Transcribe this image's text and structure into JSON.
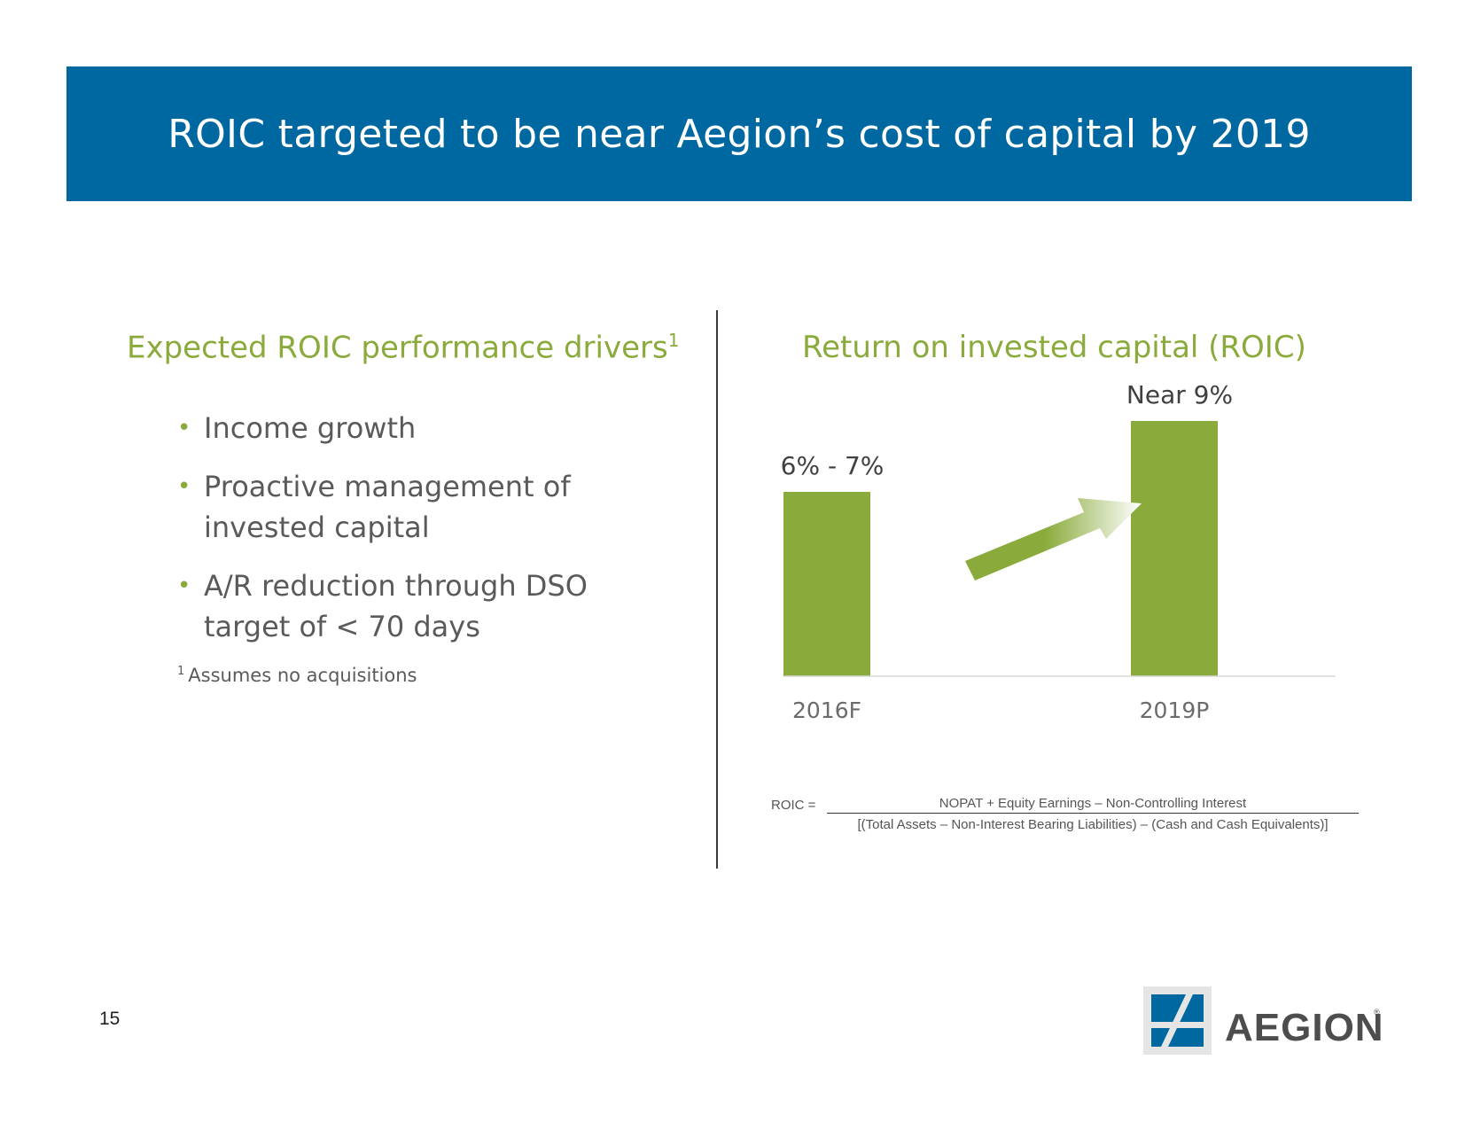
{
  "header": {
    "title": "ROIC targeted to be near Aegion’s cost of capital by 2019"
  },
  "left": {
    "title": "Expected ROIC performance drivers",
    "title_sup": "1",
    "bullets": [
      {
        "line1": "Income growth",
        "line2": ""
      },
      {
        "line1": "Proactive management of",
        "line2": "invested capital"
      },
      {
        "line1": "A/R reduction through DSO",
        "line2": "target of < 70 days"
      }
    ],
    "bullet_symbol": "•",
    "footnote_sup": "1",
    "footnote": "Assumes no acquisitions"
  },
  "right": {
    "title": "Return on invested capital (ROIC)"
  },
  "chart_data": {
    "type": "bar",
    "title": "Return on invested capital (ROIC)",
    "categories": [
      "2016F",
      "2019P"
    ],
    "values": [
      6.5,
      9
    ],
    "data_labels": [
      "6% - 7%",
      "Near 9%"
    ],
    "units": "%",
    "ylim": [
      0,
      10
    ],
    "grid": false,
    "annotations": [
      "upward-arrow"
    ],
    "colors": {
      "bar": "#8aab3c",
      "axis": "#d9d9d9",
      "arrow_start": "#8aab3c",
      "arrow_end": "#ffffff"
    }
  },
  "formula": {
    "lhs": "ROIC =",
    "numerator": "NOPAT + Equity Earnings – Non-Controlling Interest",
    "denominator": "[(Total Assets – Non-Interest Bearing Liabilities) – (Cash and Cash Equivalents)]"
  },
  "footer": {
    "page_number": "15"
  },
  "logo": {
    "text": "AEGION",
    "registered": "®"
  },
  "colors": {
    "banner": "#0068a0",
    "accent_green": "#8aab3c",
    "body_text": "#5a5a5a",
    "logo_blue": "#0068a0"
  }
}
